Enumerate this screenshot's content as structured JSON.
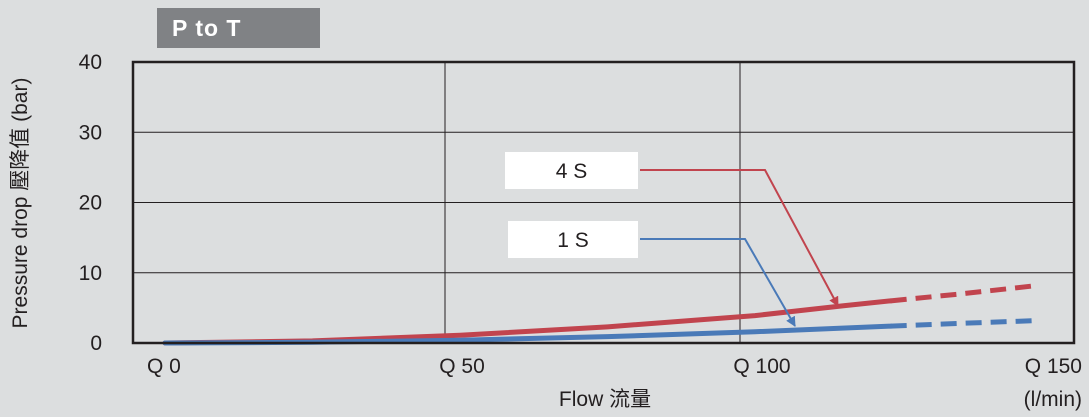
{
  "chart_data": {
    "type": "line",
    "title": "P to T",
    "xlabel": "Flow 流量",
    "xunit": "(l/min)",
    "ylabel": "Pressure drop 壓降值 (bar)",
    "xlim": [
      0,
      150
    ],
    "ylim": [
      0,
      40
    ],
    "x_ticks": [
      {
        "value": 0,
        "label": "Q 0"
      },
      {
        "value": 50,
        "label": "Q 50"
      },
      {
        "value": 100,
        "label": "Q 100"
      },
      {
        "value": 150,
        "label": "Q 150"
      }
    ],
    "y_ticks": [
      {
        "value": 0,
        "label": "0"
      },
      {
        "value": 10,
        "label": "10"
      },
      {
        "value": 20,
        "label": "20"
      },
      {
        "value": 30,
        "label": "30"
      },
      {
        "value": 40,
        "label": "40"
      }
    ],
    "grid": "vertical and horizontal",
    "series": [
      {
        "name": "4 S",
        "color": "#c1444e",
        "solid": [
          [
            0,
            0
          ],
          [
            25,
            0.3
          ],
          [
            50,
            1.1
          ],
          [
            75,
            2.3
          ],
          [
            100,
            3.9
          ],
          [
            115,
            5.3
          ],
          [
            123,
            6.0
          ]
        ],
        "dashed": [
          [
            123,
            6.0
          ],
          [
            135,
            7.0
          ],
          [
            148,
            8.2
          ]
        ]
      },
      {
        "name": "1 S",
        "color": "#4a7ab8",
        "solid": [
          [
            0,
            0
          ],
          [
            25,
            0.1
          ],
          [
            50,
            0.4
          ],
          [
            75,
            0.9
          ],
          [
            100,
            1.6
          ],
          [
            123,
            2.4
          ]
        ],
        "dashed": [
          [
            123,
            2.4
          ],
          [
            135,
            2.8
          ],
          [
            148,
            3.2
          ]
        ]
      }
    ]
  }
}
